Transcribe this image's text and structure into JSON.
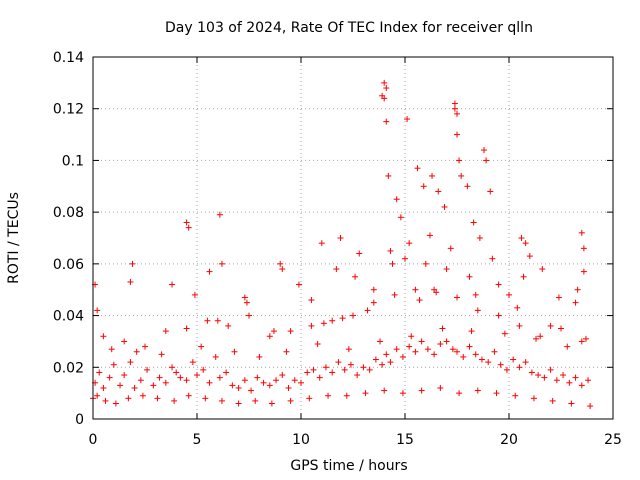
{
  "chart_data": {
    "type": "scatter",
    "title": "Day 103 of 2024, Rate Of TEC Index for receiver qlln",
    "xlabel": "GPS time / hours",
    "ylabel": "ROTI / TECUs",
    "xlim": [
      0,
      25
    ],
    "ylim": [
      0,
      0.14
    ],
    "xticks": [
      0,
      5,
      10,
      15,
      20,
      25
    ],
    "xtick_labels": [
      "0",
      "5",
      "10",
      "15",
      "20",
      "25"
    ],
    "yticks": [
      0,
      0.02,
      0.04,
      0.06,
      0.08,
      0.1,
      0.12,
      0.14
    ],
    "ytick_labels": [
      "0",
      "0.02",
      "0.04",
      "0.06",
      "0.08",
      "0.1",
      "0.12",
      "0.14"
    ],
    "grid": true,
    "marker": "+",
    "color": "#ff0000",
    "series": [
      {
        "name": "ROTI",
        "x": [
          0.1,
          0.3,
          0.5,
          0.8,
          1.0,
          1.3,
          1.5,
          1.8,
          2.0,
          2.3,
          2.6,
          2.9,
          3.2,
          3.5,
          3.8,
          4.0,
          4.2,
          4.5,
          4.8,
          5.0,
          5.3,
          5.6,
          5.9,
          6.1,
          6.4,
          6.7,
          7.0,
          7.3,
          7.6,
          7.9,
          8.2,
          8.5,
          8.8,
          9.1,
          9.4,
          9.7,
          10.0,
          10.3,
          10.6,
          10.9,
          11.2,
          11.5,
          11.8,
          12.1,
          12.4,
          12.7,
          13.0,
          13.3,
          13.6,
          13.9,
          14.1,
          14.3,
          14.6,
          14.9,
          15.2,
          15.5,
          15.8,
          16.1,
          16.4,
          16.7,
          17.0,
          17.3,
          17.5,
          17.8,
          18.1,
          18.4,
          18.7,
          19.0,
          19.3,
          19.6,
          19.9,
          20.2,
          20.5,
          20.8,
          21.1,
          21.4,
          21.7,
          22.0,
          22.3,
          22.6,
          22.9,
          23.2,
          23.5,
          23.8,
          0.0,
          0.2,
          0.6,
          1.1,
          1.7,
          2.4,
          3.1,
          3.9,
          4.6,
          5.4,
          6.2,
          7.0,
          7.8,
          8.6,
          9.5,
          10.4,
          11.3,
          12.2,
          13.1,
          14.0,
          14.9,
          15.8,
          16.7,
          17.6,
          18.5,
          19.4,
          20.3,
          21.2,
          22.1,
          23.0,
          23.9,
          4.5,
          4.6,
          5.6,
          6.1,
          6.2,
          9.0,
          9.1,
          11.0,
          11.9,
          12.8,
          13.9,
          14.0,
          14.0,
          14.1,
          14.1,
          14.2,
          14.6,
          14.8,
          15.1,
          15.6,
          15.9,
          16.3,
          16.6,
          16.9,
          17.4,
          17.4,
          17.5,
          17.5,
          17.6,
          17.7,
          18.0,
          18.3,
          18.8,
          18.9,
          19.1,
          20.6,
          20.8,
          21.0,
          23.5,
          23.6,
          23.6,
          0.1,
          0.2,
          1.8,
          1.9,
          3.8,
          4.9,
          7.3,
          7.4,
          9.9,
          10.5,
          11.7,
          12.6,
          13.5,
          15.0,
          16.0,
          17.0,
          18.1,
          19.5,
          20.0,
          21.6,
          22.4,
          23.3,
          0.5,
          1.5,
          2.5,
          3.5,
          4.5,
          5.5,
          6.5,
          7.5,
          8.5,
          9.5,
          10.5,
          11.5,
          12.5,
          13.5,
          14.5,
          15.5,
          16.5,
          17.5,
          18.5,
          19.5,
          20.5,
          21.5,
          22.5,
          23.5,
          0.9,
          2.1,
          3.3,
          5.2,
          6.8,
          8.0,
          9.3,
          10.8,
          12.3,
          13.8,
          15.3,
          16.8,
          18.2,
          19.8,
          21.3,
          22.8,
          14.3,
          14.4,
          15.2,
          16.2,
          17.2,
          18.6,
          19.2,
          20.7,
          23.2,
          6.0,
          8.7,
          11.1,
          12.0,
          13.2,
          15.7,
          16.4,
          18.4,
          20.4,
          22.0,
          23.7
        ],
        "y": [
          0.014,
          0.018,
          0.012,
          0.016,
          0.021,
          0.013,
          0.017,
          0.022,
          0.012,
          0.015,
          0.019,
          0.013,
          0.016,
          0.014,
          0.02,
          0.018,
          0.016,
          0.015,
          0.022,
          0.017,
          0.019,
          0.014,
          0.024,
          0.016,
          0.018,
          0.013,
          0.012,
          0.015,
          0.011,
          0.016,
          0.014,
          0.013,
          0.015,
          0.017,
          0.012,
          0.015,
          0.014,
          0.018,
          0.019,
          0.016,
          0.02,
          0.018,
          0.022,
          0.019,
          0.021,
          0.017,
          0.02,
          0.019,
          0.023,
          0.021,
          0.025,
          0.022,
          0.027,
          0.024,
          0.028,
          0.026,
          0.03,
          0.027,
          0.025,
          0.029,
          0.03,
          0.027,
          0.026,
          0.024,
          0.028,
          0.025,
          0.023,
          0.022,
          0.026,
          0.021,
          0.019,
          0.023,
          0.02,
          0.022,
          0.018,
          0.017,
          0.016,
          0.019,
          0.015,
          0.017,
          0.014,
          0.016,
          0.013,
          0.015,
          0.008,
          0.009,
          0.007,
          0.006,
          0.008,
          0.009,
          0.008,
          0.007,
          0.009,
          0.008,
          0.007,
          0.006,
          0.007,
          0.006,
          0.007,
          0.008,
          0.009,
          0.009,
          0.01,
          0.011,
          0.01,
          0.011,
          0.012,
          0.01,
          0.011,
          0.01,
          0.009,
          0.008,
          0.007,
          0.006,
          0.005,
          0.076,
          0.074,
          0.057,
          0.079,
          0.06,
          0.06,
          0.058,
          0.068,
          0.07,
          0.064,
          0.125,
          0.124,
          0.13,
          0.128,
          0.115,
          0.094,
          0.085,
          0.078,
          0.116,
          0.097,
          0.09,
          0.094,
          0.088,
          0.082,
          0.122,
          0.12,
          0.118,
          0.11,
          0.1,
          0.094,
          0.09,
          0.076,
          0.104,
          0.1,
          0.088,
          0.07,
          0.068,
          0.063,
          0.072,
          0.066,
          0.057,
          0.052,
          0.042,
          0.053,
          0.06,
          0.052,
          0.048,
          0.047,
          0.045,
          0.052,
          0.046,
          0.058,
          0.055,
          0.05,
          0.062,
          0.06,
          0.058,
          0.055,
          0.052,
          0.048,
          0.058,
          0.047,
          0.05,
          0.032,
          0.03,
          0.028,
          0.034,
          0.035,
          0.038,
          0.036,
          0.04,
          0.032,
          0.034,
          0.036,
          0.038,
          0.04,
          0.045,
          0.048,
          0.05,
          0.049,
          0.047,
          0.042,
          0.04,
          0.036,
          0.032,
          0.035,
          0.03,
          0.027,
          0.026,
          0.025,
          0.028,
          0.026,
          0.024,
          0.026,
          0.029,
          0.027,
          0.03,
          0.032,
          0.035,
          0.034,
          0.033,
          0.031,
          0.028,
          0.065,
          0.06,
          0.068,
          0.071,
          0.066,
          0.07,
          0.062,
          0.055,
          0.045,
          0.038,
          0.034,
          0.037,
          0.039,
          0.042,
          0.046,
          0.05,
          0.048,
          0.043,
          0.036,
          0.031
        ]
      }
    ]
  }
}
